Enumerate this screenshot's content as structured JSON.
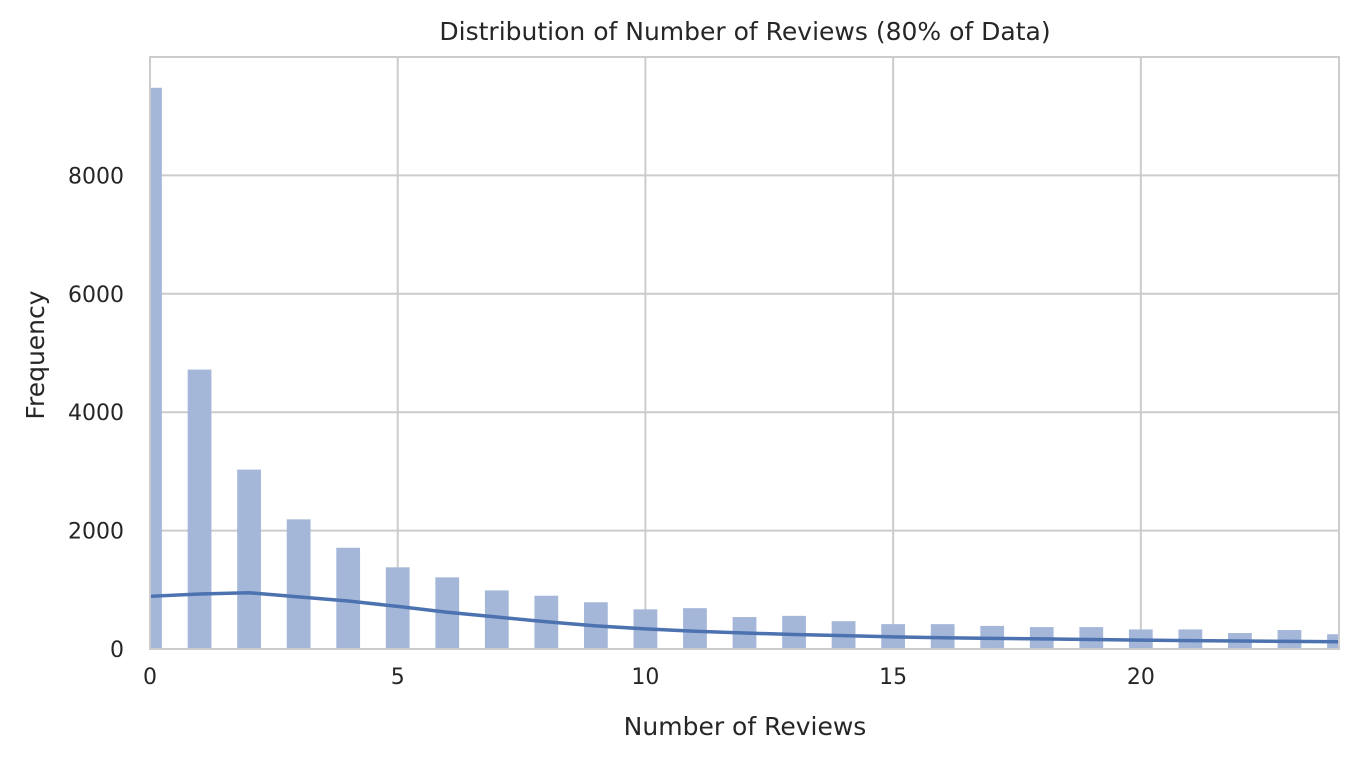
{
  "chart_data": {
    "type": "bar",
    "title": "Distribution of Number of Reviews (80% of Data)",
    "xlabel": "Number of Reviews",
    "ylabel": "Frequency",
    "xlim": [
      0,
      24
    ],
    "ylim": [
      0,
      10000
    ],
    "xticks": [
      0,
      5,
      10,
      15,
      20
    ],
    "yticks": [
      0,
      2000,
      4000,
      6000,
      8000
    ],
    "grid": true,
    "bar_color": "#a5b7d9",
    "kde_color": "#4c72b0",
    "bars": [
      {
        "x": 0,
        "value": 9480
      },
      {
        "x": 1,
        "value": 4720
      },
      {
        "x": 2,
        "value": 3030
      },
      {
        "x": 3,
        "value": 2190
      },
      {
        "x": 4,
        "value": 1710
      },
      {
        "x": 5,
        "value": 1380
      },
      {
        "x": 6,
        "value": 1210
      },
      {
        "x": 7,
        "value": 990
      },
      {
        "x": 8,
        "value": 900
      },
      {
        "x": 9,
        "value": 790
      },
      {
        "x": 10,
        "value": 670
      },
      {
        "x": 11,
        "value": 690
      },
      {
        "x": 12,
        "value": 540
      },
      {
        "x": 13,
        "value": 560
      },
      {
        "x": 14,
        "value": 470
      },
      {
        "x": 15,
        "value": 420
      },
      {
        "x": 16,
        "value": 420
      },
      {
        "x": 17,
        "value": 390
      },
      {
        "x": 18,
        "value": 370
      },
      {
        "x": 19,
        "value": 370
      },
      {
        "x": 20,
        "value": 330
      },
      {
        "x": 21,
        "value": 330
      },
      {
        "x": 22,
        "value": 270
      },
      {
        "x": 23,
        "value": 320
      },
      {
        "x": 24,
        "value": 250
      }
    ],
    "kde": {
      "x": [
        0,
        1,
        2,
        3,
        4,
        5,
        6,
        7,
        8,
        9,
        10,
        11,
        12,
        13,
        14,
        15,
        16,
        17,
        18,
        19,
        20,
        21,
        22,
        23,
        24
      ],
      "y": [
        890,
        930,
        950,
        880,
        810,
        720,
        620,
        540,
        460,
        390,
        340,
        300,
        270,
        245,
        225,
        205,
        190,
        180,
        170,
        160,
        150,
        142,
        135,
        128,
        122
      ]
    }
  }
}
